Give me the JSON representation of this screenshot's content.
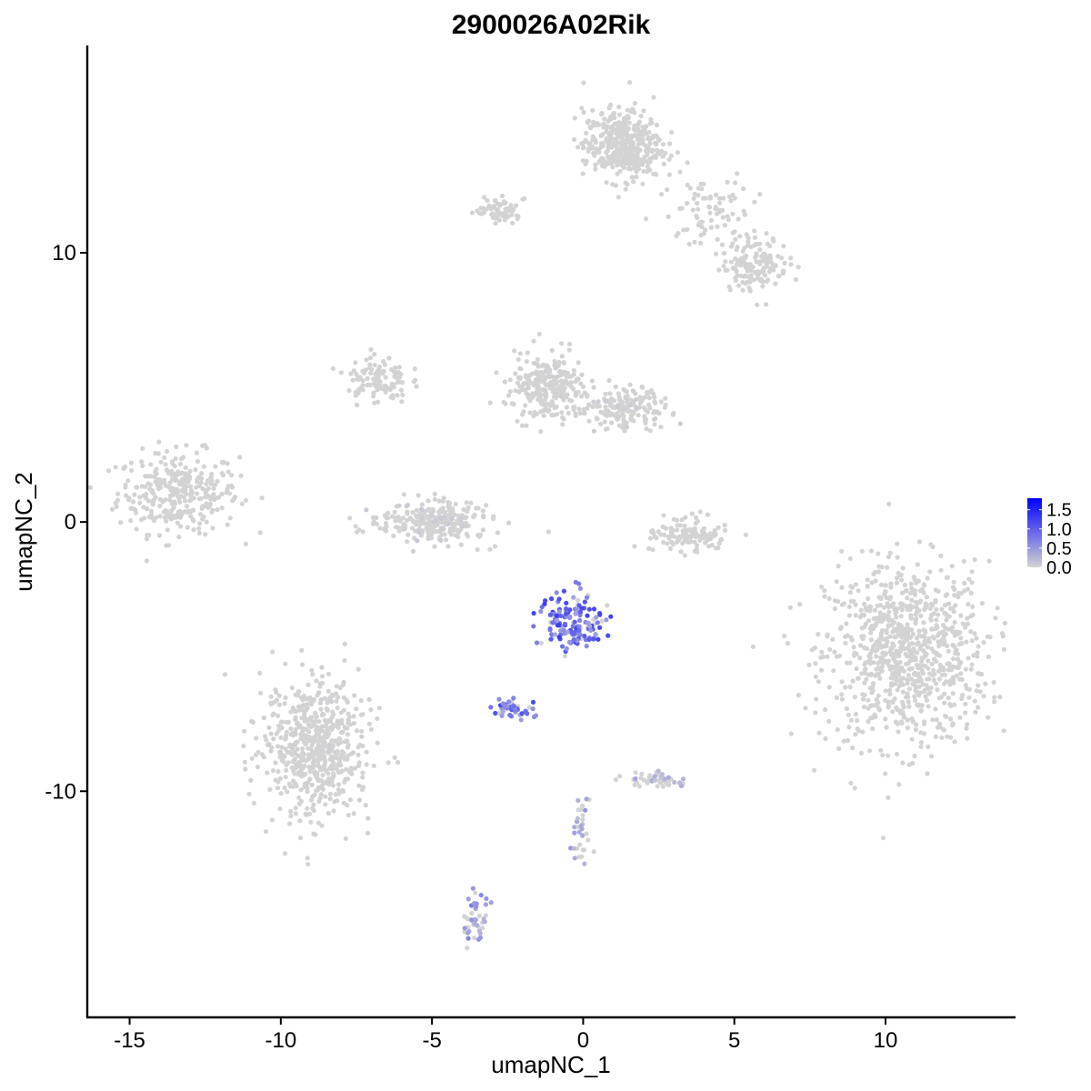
{
  "chart_data": {
    "type": "scatter",
    "title": "2900026A02Rik",
    "xlabel": "umapNC_1",
    "ylabel": "umapNC_2",
    "xlim": [
      -16.4,
      14.3
    ],
    "ylim": [
      -18.4,
      17.7
    ],
    "x_ticks": [
      {
        "value": -15,
        "label": "-15"
      },
      {
        "value": -10,
        "label": "-10"
      },
      {
        "value": -5,
        "label": "-5"
      },
      {
        "value": 0,
        "label": "0"
      },
      {
        "value": 5,
        "label": "5"
      },
      {
        "value": 10,
        "label": "10"
      }
    ],
    "y_ticks": [
      {
        "value": -10,
        "label": "-10"
      },
      {
        "value": 0,
        "label": "0"
      },
      {
        "value": 10,
        "label": "10"
      }
    ],
    "color_scale": {
      "low_color": "#d3d3d3",
      "high_color": "#0000ff",
      "min": 0.0,
      "max": 1.8,
      "ticks": [
        {
          "value": 0.0,
          "label": "0.0"
        },
        {
          "value": 0.5,
          "label": "0.5"
        },
        {
          "value": 1.0,
          "label": "1.0"
        },
        {
          "value": 1.5,
          "label": "1.5"
        }
      ],
      "legend_position": "right"
    },
    "grid": false,
    "clusters": [
      {
        "id": "c1",
        "cx": -13.4,
        "cy": 1.1,
        "sx": 1.0,
        "sy": 0.75,
        "n": 320,
        "expr": 0.0
      },
      {
        "id": "c2",
        "cx": 10.7,
        "cy": -4.9,
        "sx": 1.35,
        "sy": 1.7,
        "n": 900,
        "expr": 0.0
      },
      {
        "id": "c3",
        "cx": -8.8,
        "cy": -8.4,
        "sx": 0.9,
        "sy": 1.3,
        "n": 600,
        "expr": 0.02
      },
      {
        "id": "c4",
        "cx": 1.3,
        "cy": 14.0,
        "sx": 0.65,
        "sy": 0.65,
        "n": 420,
        "expr": 0.0
      },
      {
        "id": "c5",
        "cx": 5.7,
        "cy": 9.6,
        "sx": 0.55,
        "sy": 0.5,
        "n": 150,
        "expr": 0.0
      },
      {
        "id": "c6",
        "cx": -6.8,
        "cy": 5.3,
        "sx": 0.5,
        "sy": 0.45,
        "n": 110,
        "expr": 0.0
      },
      {
        "id": "c7",
        "cx": -1.2,
        "cy": 5.0,
        "sx": 0.6,
        "sy": 0.6,
        "n": 260,
        "expr": 0.02
      },
      {
        "id": "c8",
        "cx": 1.4,
        "cy": 4.2,
        "sx": 0.7,
        "sy": 0.35,
        "n": 170,
        "expr": 0.03
      },
      {
        "id": "c9",
        "cx": -5.0,
        "cy": 0.0,
        "sx": 0.9,
        "sy": 0.4,
        "n": 280,
        "expr": 0.05
      },
      {
        "id": "c10",
        "cx": -0.4,
        "cy": -3.7,
        "sx": 0.55,
        "sy": 0.5,
        "n": 150,
        "expr": 0.6
      },
      {
        "id": "c11",
        "cx": -2.3,
        "cy": -6.9,
        "sx": 0.35,
        "sy": 0.18,
        "n": 45,
        "expr": 0.55
      },
      {
        "id": "c12",
        "cx": 2.4,
        "cy": -9.6,
        "sx": 0.45,
        "sy": 0.15,
        "n": 55,
        "expr": 0.18
      },
      {
        "id": "c13",
        "cx": -3.5,
        "cy": -14.8,
        "sx": 0.18,
        "sy": 0.5,
        "n": 45,
        "expr": 0.35
      },
      {
        "id": "c14",
        "cx": -0.1,
        "cy": -11.5,
        "sx": 0.15,
        "sy": 0.55,
        "n": 35,
        "expr": 0.25
      },
      {
        "id": "c15",
        "cx": -2.8,
        "cy": 11.6,
        "sx": 0.35,
        "sy": 0.25,
        "n": 70,
        "expr": 0.0
      },
      {
        "id": "c16",
        "cx": 3.5,
        "cy": -0.5,
        "sx": 0.6,
        "sy": 0.35,
        "n": 120,
        "expr": 0.0
      },
      {
        "id": "c17",
        "cx": 4.2,
        "cy": 11.5,
        "sx": 0.8,
        "sy": 0.6,
        "n": 80,
        "expr": 0.0
      }
    ]
  }
}
